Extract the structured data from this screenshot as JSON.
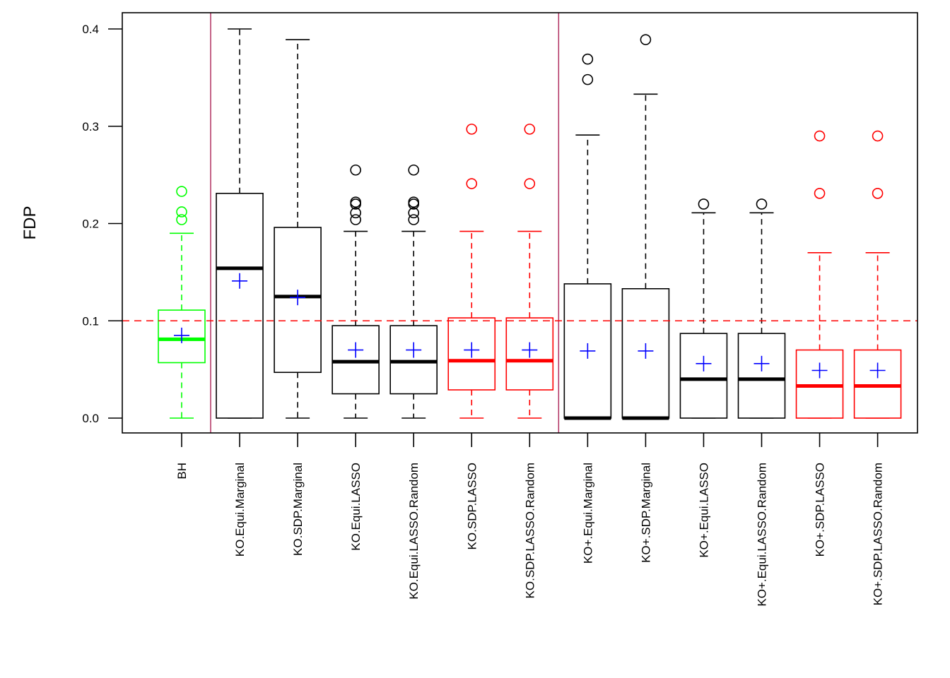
{
  "chart_data": {
    "type": "boxplot",
    "title": "",
    "xlabel": "",
    "ylabel": "FDP",
    "ylim": [
      -0.015,
      0.415
    ],
    "yticks": [
      0.0,
      0.1,
      0.2,
      0.3,
      0.4
    ],
    "ytick_labels": [
      "0.0",
      "0.1",
      "0.2",
      "0.3",
      "0.4"
    ],
    "grid": false,
    "legend": "none",
    "reference_line": {
      "y": 0.1,
      "color": "#ff0000",
      "style": "dashed"
    },
    "group_separators": {
      "after_categories": [
        "BH",
        "KO.SDP.LASSO.Random"
      ],
      "color": "#b03060"
    },
    "mean_marker": {
      "symbol": "+",
      "color": "#0000ff"
    },
    "categories": [
      "BH",
      "KO.Equi.Marginal",
      "KO.SDP.Marginal",
      "KO.Equi.LASSO",
      "KO.Equi.LASSO.Random",
      "KO.SDP.LASSO",
      "KO.SDP.LASSO.Random",
      "KO+.Equi.Marginal",
      "KO+.SDP.Marginal",
      "KO+.Equi.LASSO",
      "KO+.Equi.LASSO.Random",
      "KO+.SDP.LASSO",
      "KO+.SDP.LASSO.Random"
    ],
    "boxes": [
      {
        "name": "BH",
        "color": "#00ff00",
        "whisker_low": 0.0,
        "q1": 0.057,
        "median": 0.081,
        "q3": 0.111,
        "whisker_high": 0.19,
        "mean": 0.085,
        "outliers": [
          0.204,
          0.212,
          0.233
        ]
      },
      {
        "name": "KO.Equi.Marginal",
        "color": "#000000",
        "whisker_low": 0.0,
        "q1": 0.0,
        "median": 0.154,
        "q3": 0.231,
        "whisker_high": 0.4,
        "mean": 0.141,
        "outliers": []
      },
      {
        "name": "KO.SDP.Marginal",
        "color": "#000000",
        "whisker_low": 0.0,
        "q1": 0.047,
        "median": 0.125,
        "q3": 0.196,
        "whisker_high": 0.389,
        "mean": 0.124,
        "outliers": []
      },
      {
        "name": "KO.Equi.LASSO",
        "color": "#000000",
        "whisker_low": 0.0,
        "q1": 0.025,
        "median": 0.058,
        "q3": 0.095,
        "whisker_high": 0.192,
        "mean": 0.07,
        "outliers": [
          0.204,
          0.211,
          0.22,
          0.222,
          0.255
        ]
      },
      {
        "name": "KO.Equi.LASSO.Random",
        "color": "#000000",
        "whisker_low": 0.0,
        "q1": 0.025,
        "median": 0.058,
        "q3": 0.095,
        "whisker_high": 0.192,
        "mean": 0.07,
        "outliers": [
          0.204,
          0.211,
          0.22,
          0.222,
          0.255
        ]
      },
      {
        "name": "KO.SDP.LASSO",
        "color": "#ff0000",
        "whisker_low": 0.0,
        "q1": 0.029,
        "median": 0.059,
        "q3": 0.103,
        "whisker_high": 0.192,
        "mean": 0.07,
        "outliers": [
          0.241,
          0.297
        ]
      },
      {
        "name": "KO.SDP.LASSO.Random",
        "color": "#ff0000",
        "whisker_low": 0.0,
        "q1": 0.029,
        "median": 0.059,
        "q3": 0.103,
        "whisker_high": 0.192,
        "mean": 0.07,
        "outliers": [
          0.241,
          0.297
        ]
      },
      {
        "name": "KO+.Equi.Marginal",
        "color": "#000000",
        "whisker_low": 0.0,
        "q1": 0.0,
        "median": 0.0,
        "q3": 0.138,
        "whisker_high": 0.291,
        "mean": 0.069,
        "outliers": [
          0.348,
          0.369
        ]
      },
      {
        "name": "KO+.SDP.Marginal",
        "color": "#000000",
        "whisker_low": 0.0,
        "q1": 0.0,
        "median": 0.0,
        "q3": 0.133,
        "whisker_high": 0.333,
        "mean": 0.069,
        "outliers": [
          0.389
        ]
      },
      {
        "name": "KO+.Equi.LASSO",
        "color": "#000000",
        "whisker_low": 0.0,
        "q1": 0.0,
        "median": 0.04,
        "q3": 0.087,
        "whisker_high": 0.211,
        "mean": 0.056,
        "outliers": [
          0.22
        ]
      },
      {
        "name": "KO+.Equi.LASSO.Random",
        "color": "#000000",
        "whisker_low": 0.0,
        "q1": 0.0,
        "median": 0.04,
        "q3": 0.087,
        "whisker_high": 0.211,
        "mean": 0.056,
        "outliers": [
          0.22
        ]
      },
      {
        "name": "KO+.SDP.LASSO",
        "color": "#ff0000",
        "whisker_low": 0.0,
        "q1": 0.0,
        "median": 0.033,
        "q3": 0.07,
        "whisker_high": 0.17,
        "mean": 0.049,
        "outliers": [
          0.231,
          0.29
        ]
      },
      {
        "name": "KO+.SDP.LASSO.Random",
        "color": "#ff0000",
        "whisker_low": 0.0,
        "q1": 0.0,
        "median": 0.033,
        "q3": 0.07,
        "whisker_high": 0.17,
        "mean": 0.049,
        "outliers": [
          0.231,
          0.29
        ]
      }
    ]
  }
}
